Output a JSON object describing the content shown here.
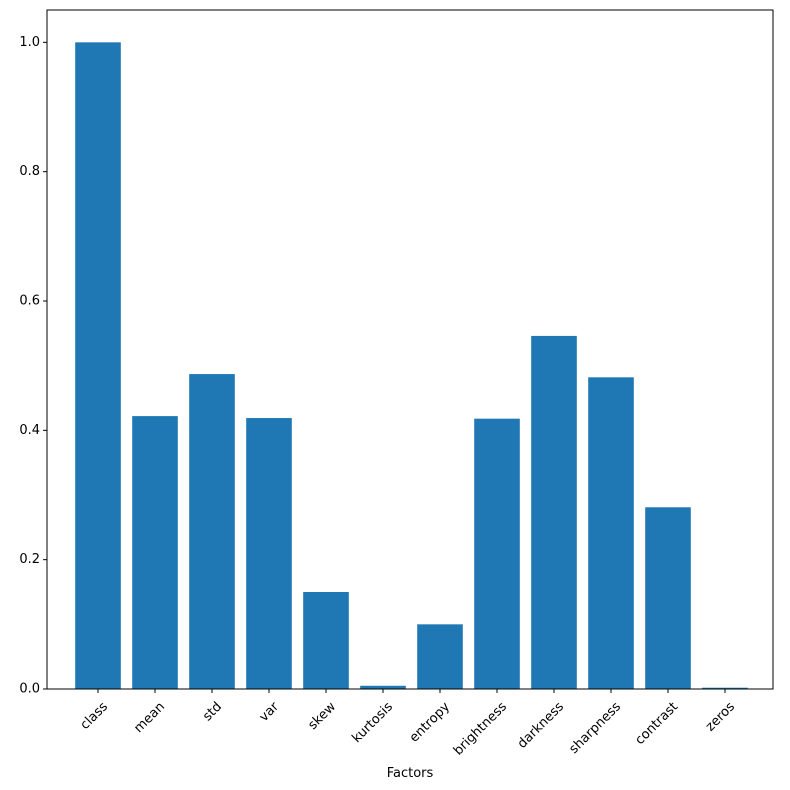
{
  "chart_data": {
    "type": "bar",
    "title": "",
    "xlabel": "Factors",
    "ylabel": "",
    "categories": [
      "class",
      "mean",
      "std",
      "var",
      "skew",
      "kurtosis",
      "entropy",
      "brightness",
      "darkness",
      "sharpness",
      "contrast",
      "zeros"
    ],
    "values": [
      1.0,
      0.422,
      0.487,
      0.419,
      0.15,
      0.005,
      0.1,
      0.418,
      0.546,
      0.482,
      0.281,
      0.002
    ],
    "ylim": [
      0,
      1.05
    ],
    "yticks": [
      0.0,
      0.2,
      0.4,
      0.6,
      0.8,
      1.0
    ],
    "ytick_labels": [
      "0.0",
      "0.2",
      "0.4",
      "0.6",
      "0.8",
      "1.0"
    ],
    "grid": false,
    "bar_color": "#1f77b4"
  }
}
